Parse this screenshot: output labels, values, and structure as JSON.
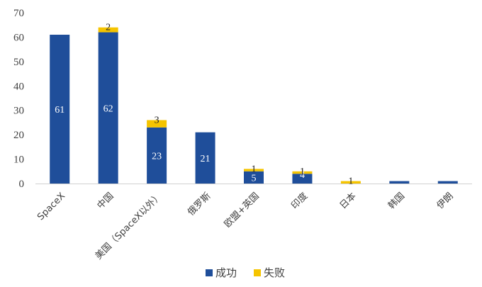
{
  "chart_data": {
    "type": "bar",
    "stacked": true,
    "title": "",
    "xlabel": "",
    "ylabel": "",
    "ylim": [
      0,
      70
    ],
    "yticks": [
      0,
      10,
      20,
      30,
      40,
      50,
      60,
      70
    ],
    "grid": false,
    "legend_position": "bottom",
    "categories": [
      "SpaceX",
      "中国",
      "美国（SpaceX以外）",
      "俄罗斯",
      "欧盟+英国",
      "印度",
      "日本",
      "韩国",
      "伊朗"
    ],
    "series": [
      {
        "name": "成功",
        "color": "#1F4E9A",
        "values": [
          61,
          62,
          23,
          21,
          5,
          4,
          0,
          1,
          1
        ],
        "labels": [
          "61",
          "62",
          "23",
          "21",
          "5",
          "4",
          "",
          "",
          ""
        ]
      },
      {
        "name": "失败",
        "color": "#F5C400",
        "values": [
          0,
          2,
          3,
          0,
          1,
          1,
          1,
          0,
          0
        ],
        "labels": [
          "",
          "2",
          "3",
          "",
          "1",
          "1",
          "1",
          "",
          ""
        ]
      }
    ]
  }
}
